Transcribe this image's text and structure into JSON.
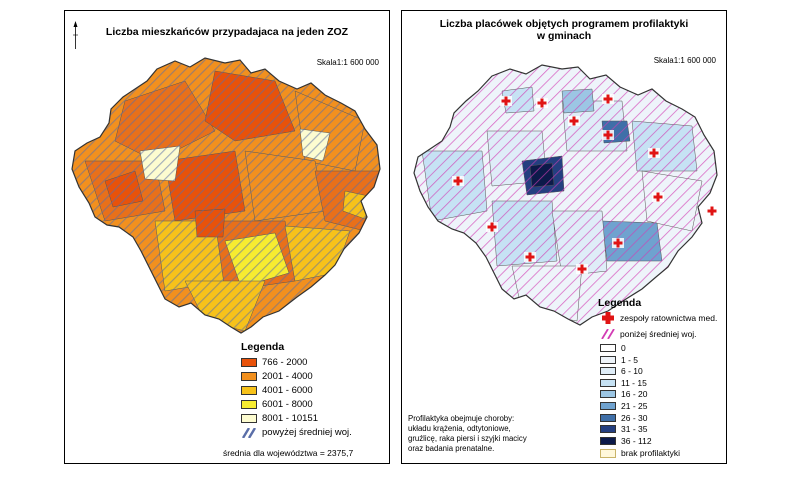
{
  "left_map": {
    "title": "Liczba mieszkańców przypadajaca na jeden ZOZ",
    "scale": "Skala1:1 600 000",
    "legend_title": "Legenda",
    "legend_items": [
      {
        "label": "766 - 2000",
        "color": "#e8520a"
      },
      {
        "label": "2001 - 4000",
        "color": "#f2901e"
      },
      {
        "label": "4001 - 6000",
        "color": "#f7c21a"
      },
      {
        "label": "6001 - 8000",
        "color": "#f7ec30"
      },
      {
        "label": "8001 - 10151",
        "color": "#fdfcd0"
      }
    ],
    "hatch_label": "powyżej średniej woj.",
    "hatch_color": "#5a6ea8",
    "average_text": "średnia dla województwa = 2375,7"
  },
  "right_map": {
    "title_line1": "Liczba placówek objętych programem profilaktyki",
    "title_line2": "w gminach",
    "scale": "Skala1:1 600 000",
    "legend_title": "Legenda",
    "rescue_label": "zespoły ratownictwa med.",
    "rescue_color": "#e01414",
    "hatch_label": "poniżej średniej woj.",
    "hatch_color": "#d23cb4",
    "legend_items": [
      {
        "label": "0",
        "color": "#ffffff"
      },
      {
        "label": "1 - 5",
        "color": "#eef4fa"
      },
      {
        "label": "6 - 10",
        "color": "#dfedf8"
      },
      {
        "label": "11 - 15",
        "color": "#c6e2f4"
      },
      {
        "label": "16 - 20",
        "color": "#9cc6e4"
      },
      {
        "label": "21 - 25",
        "color": "#6fa2cf"
      },
      {
        "label": "26 - 30",
        "color": "#3f6fa8"
      },
      {
        "label": "31 - 35",
        "color": "#243f80"
      },
      {
        "label": "36 - 112",
        "color": "#0c1a4a"
      }
    ],
    "no_prevention_label": "brak profilaktyki",
    "note_lines": [
      "Profilaktyka obejmuje choroby:",
      "układu krążenia, odtytoniowe,",
      "gruźlicę, raka piersi i szyjki macicy",
      "oraz badania prenatalne."
    ]
  }
}
